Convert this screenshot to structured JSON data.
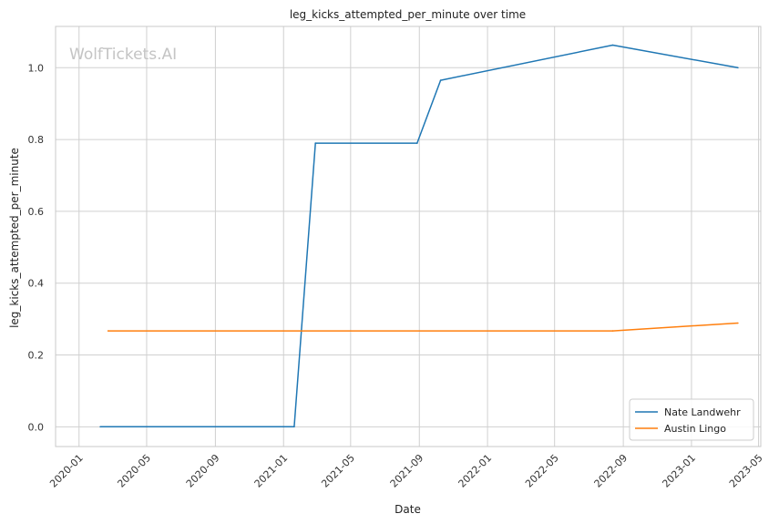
{
  "watermark": "WolfTickets.AI",
  "colors": {
    "grid": "#d0d0d0",
    "frame": "#c8c8c8",
    "series_1": "#1f77b4",
    "series_2": "#ff7f0e"
  },
  "chart_data": {
    "type": "line",
    "title": "leg_kicks_attempted_per_minute over time",
    "xlabel": "Date",
    "ylabel": "leg_kicks_attempted_per_minute",
    "x_type": "date",
    "xlim": [
      "2019-11-20",
      "2023-05-05"
    ],
    "ylim": [
      -0.055,
      1.115
    ],
    "x_ticks": [
      "2020-01",
      "2020-05",
      "2020-09",
      "2021-01",
      "2021-05",
      "2021-09",
      "2022-01",
      "2022-05",
      "2022-09",
      "2023-01",
      "2023-05"
    ],
    "y_ticks": [
      "0.0",
      "0.2",
      "0.4",
      "0.6",
      "0.8",
      "1.0"
    ],
    "grid": true,
    "legend_position": "bottom-right",
    "series": [
      {
        "name": "Nate Landwehr",
        "color": "#1f77b4",
        "points": [
          {
            "x": "2020-02-08",
            "y": 0.0
          },
          {
            "x": "2021-01-20",
            "y": 0.0
          },
          {
            "x": "2021-02-27",
            "y": 0.79
          },
          {
            "x": "2021-08-28",
            "y": 0.79
          },
          {
            "x": "2021-10-09",
            "y": 0.965
          },
          {
            "x": "2022-08-13",
            "y": 1.063
          },
          {
            "x": "2023-03-25",
            "y": 1.0
          }
        ]
      },
      {
        "name": "Austin Lingo",
        "color": "#ff7f0e",
        "points": [
          {
            "x": "2020-02-22",
            "y": 0.267
          },
          {
            "x": "2022-08-13",
            "y": 0.267
          },
          {
            "x": "2023-03-25",
            "y": 0.289
          }
        ]
      }
    ]
  }
}
